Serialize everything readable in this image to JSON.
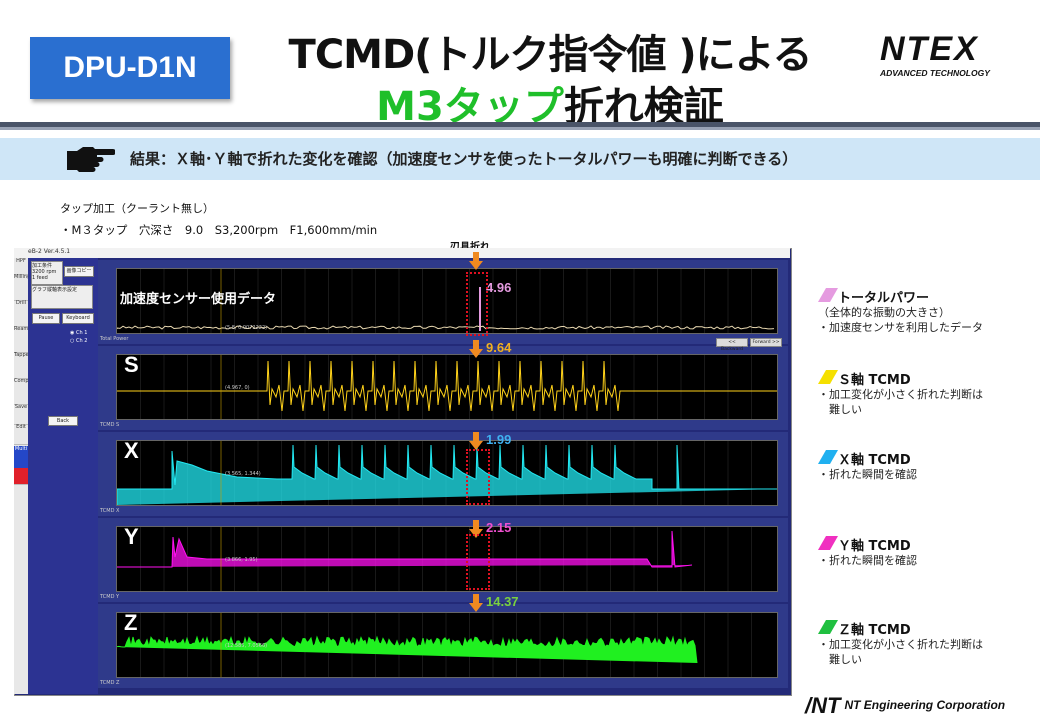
{
  "header": {
    "badge": "DPU-D1N",
    "title_line1": "TCMD(トルク指令値 )による",
    "title_line2_green": "M3タップ",
    "title_line2_rest": "折れ検証",
    "logo_main": "NTEX",
    "logo_sub": "ADVANCED TECHNOLOGY"
  },
  "result": {
    "text": "結果：Ｘ軸･Ｙ軸で折れた変化を確認（加速度センサを使ったトータルパワーも明確に判断できる）"
  },
  "conditions": {
    "line1": "タップ加工（クーラント無し）",
    "line2": "・M３タップ　穴深さ　9.0　S3,200rpm　F1,600mm/min"
  },
  "break_label": "刃具折れ",
  "app": {
    "title": "eB-2 Ver.4.5.1",
    "tabs": [
      "HPF",
      "Milling",
      "Drill",
      "Reamer",
      "Tapper",
      "Compare",
      "Save",
      "Edit"
    ],
    "tab_active": "Multi",
    "panel_title": "加工条件",
    "panel_rpm": "3200 rpm",
    "panel_feed": "1 feed",
    "panel_button": "画像コピー",
    "panel2_title": "グラフ縦軸表示設定",
    "pause_button": "Pause",
    "keyboard_button": "Keyboard",
    "radio1": "Ch 1",
    "radio2": "Ch 2",
    "back_button": "Back",
    "back_nav": "<< Backward",
    "forward_nav": "Forward >>"
  },
  "plots": [
    {
      "channel": "",
      "label": "加速度センサー使用データ",
      "value": "4.96",
      "value_color": "#e59be0",
      "foot": "Total Power",
      "cursor": "(5.8, 0.0072222)"
    },
    {
      "channel": "S",
      "label": "",
      "value": "9.64",
      "value_color": "#f0b020",
      "foot": "TCMD S",
      "cursor": "(4.967, 0)"
    },
    {
      "channel": "X",
      "label": "",
      "value": "1.99",
      "value_color": "#3fb0f0",
      "foot": "TCMD X",
      "cursor": "(3.565, 1.344)"
    },
    {
      "channel": "Y",
      "label": "",
      "value": "2.15",
      "value_color": "#f050d0",
      "foot": "TCMD Y",
      "cursor": "(3.866, 1.95)"
    },
    {
      "channel": "Z",
      "label": "",
      "value": "14.37",
      "value_color": "#7ad040",
      "foot": "TCMD Z",
      "cursor": "(12.585, 7.0566)"
    }
  ],
  "legend": [
    {
      "title": "トータルパワー",
      "desc": "（全体的な振動の大きさ）\n・加速度センサを利用したデータ",
      "color": "#e59be0"
    },
    {
      "title": "Ｓ軸 TCMD",
      "desc": "・加工変化が小さく折れた判断は\n　難しい",
      "color": "#f5e000"
    },
    {
      "title": "Ｘ軸 TCMD",
      "desc": "・折れた瞬間を確認",
      "color": "#20b0f0"
    },
    {
      "title": "Ｙ軸 TCMD",
      "desc": "・折れた瞬間を確認",
      "color": "#f030c0"
    },
    {
      "title": "Ｚ軸 TCMD",
      "desc": "・加工変化が小さく折れた判断は\n　難しい",
      "color": "#20c040"
    }
  ],
  "footer": "NT Engineering Corporation",
  "colors": {
    "signal_total": "#e8d8b0",
    "signal_s": "#ffd21a",
    "signal_x": "#22e8f2",
    "signal_y": "#ff10f0",
    "signal_z": "#20f020"
  }
}
